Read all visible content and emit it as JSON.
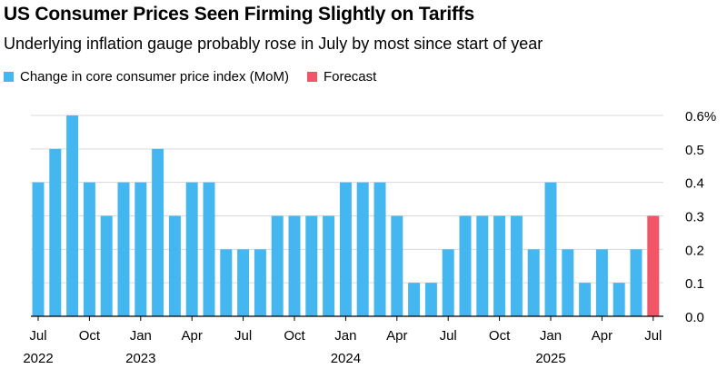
{
  "title": "US Consumer Prices Seen Firming Slightly on Tariffs",
  "subtitle": "Underlying inflation gauge probably rose in July by most since start of year",
  "legend": {
    "actual_label": "Change in core consumer price index (MoM)",
    "forecast_label": "Forecast",
    "actual_color": "#45b7f0",
    "forecast_color": "#f25567"
  },
  "chart_data": {
    "type": "bar",
    "categories": [
      "2022-07",
      "2022-08",
      "2022-09",
      "2022-10",
      "2022-11",
      "2022-12",
      "2023-01",
      "2023-02",
      "2023-03",
      "2023-04",
      "2023-05",
      "2023-06",
      "2023-07",
      "2023-08",
      "2023-09",
      "2023-10",
      "2023-11",
      "2023-12",
      "2024-01",
      "2024-02",
      "2024-03",
      "2024-04",
      "2024-05",
      "2024-06",
      "2024-07",
      "2024-08",
      "2024-09",
      "2024-10",
      "2024-11",
      "2024-12",
      "2025-01",
      "2025-02",
      "2025-03",
      "2025-04",
      "2025-05",
      "2025-06",
      "2025-07"
    ],
    "series": [
      {
        "name": "Change in core consumer price index (MoM)",
        "color": "#45b7f0",
        "values": [
          0.4,
          0.5,
          0.6,
          0.4,
          0.3,
          0.4,
          0.4,
          0.5,
          0.3,
          0.4,
          0.4,
          0.2,
          0.2,
          0.2,
          0.3,
          0.3,
          0.3,
          0.3,
          0.4,
          0.4,
          0.4,
          0.3,
          0.1,
          0.1,
          0.2,
          0.3,
          0.3,
          0.3,
          0.3,
          0.2,
          0.4,
          0.2,
          0.1,
          0.2,
          0.1,
          0.2,
          null
        ]
      },
      {
        "name": "Forecast",
        "color": "#f25567",
        "values": [
          null,
          null,
          null,
          null,
          null,
          null,
          null,
          null,
          null,
          null,
          null,
          null,
          null,
          null,
          null,
          null,
          null,
          null,
          null,
          null,
          null,
          null,
          null,
          null,
          null,
          null,
          null,
          null,
          null,
          null,
          null,
          null,
          null,
          null,
          null,
          null,
          0.3
        ]
      }
    ],
    "y_ticks": [
      "0.6%",
      "0.5",
      "0.4",
      "0.3",
      "0.2",
      "0.1",
      "0.0"
    ],
    "y_tick_values": [
      0.6,
      0.5,
      0.4,
      0.3,
      0.2,
      0.1,
      0.0
    ],
    "ylim": [
      0,
      0.6
    ],
    "x_ticks": [
      {
        "index": 0,
        "label": "Jul",
        "year": "2022"
      },
      {
        "index": 3,
        "label": "Oct"
      },
      {
        "index": 6,
        "label": "Jan",
        "year": "2023"
      },
      {
        "index": 9,
        "label": "Apr"
      },
      {
        "index": 12,
        "label": "Jul"
      },
      {
        "index": 15,
        "label": "Oct"
      },
      {
        "index": 18,
        "label": "Jan",
        "year": "2024"
      },
      {
        "index": 21,
        "label": "Apr"
      },
      {
        "index": 24,
        "label": "Jul"
      },
      {
        "index": 27,
        "label": "Oct"
      },
      {
        "index": 30,
        "label": "Jan",
        "year": "2025"
      },
      {
        "index": 33,
        "label": "Apr"
      },
      {
        "index": 36,
        "label": "Jul"
      }
    ],
    "grid": true,
    "axis_position": "right",
    "legend_position": "top-left"
  }
}
